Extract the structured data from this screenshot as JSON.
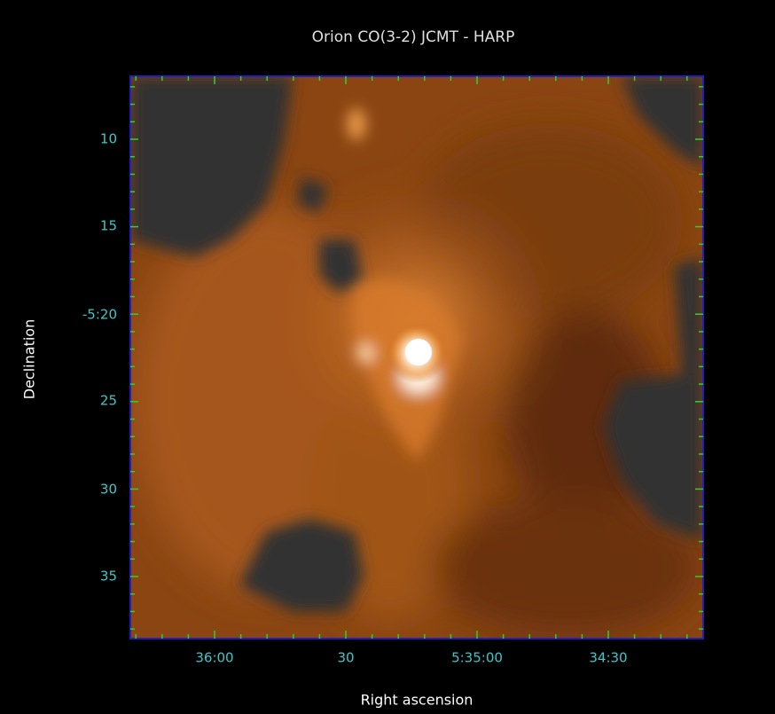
{
  "title": "Orion CO(3-2)  JCMT - HARP",
  "x_label": "Right ascension",
  "y_label": "Declination",
  "x_tick_labels": [
    "36:00",
    "30",
    "5:35:00",
    "34:30"
  ],
  "y_tick_labels": [
    "10",
    "15",
    "-5:20",
    "25",
    "30",
    "35"
  ]
}
